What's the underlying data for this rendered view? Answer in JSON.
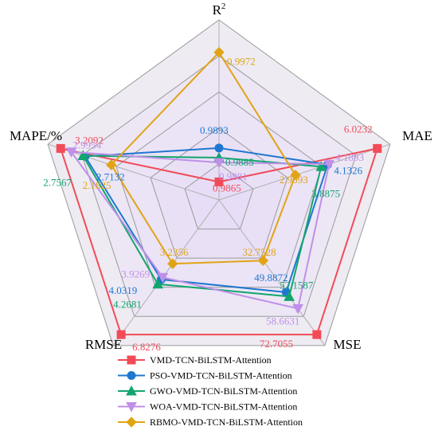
{
  "chart_data": {
    "type": "radar",
    "title": "",
    "axes": [
      "R",
      "MAE",
      "MSE",
      "RMSE",
      "MAPE/%"
    ],
    "axis_superscripts": [
      "2",
      "",
      "",
      "",
      ""
    ],
    "grid": true,
    "legend_placement": "bottom-center",
    "series": [
      {
        "name": "VMD-TCN-BiLSTM-Attention",
        "color": "#F24B57",
        "marker": "square",
        "values": [
          0.9865,
          6.0232,
          72.7055,
          6.8276,
          3.2092
        ],
        "labels": [
          "0.9865",
          "6.0232",
          "72.7055",
          "6.8276",
          "3.2092"
        ]
      },
      {
        "name": "PSO-VMD-TCN-BiLSTM-Attention",
        "color": "#1F77D0",
        "marker": "circle",
        "values": [
          0.9893,
          4.1326,
          49.8872,
          4.0319,
          2.7132
        ],
        "labels": [
          "0.9893",
          "4.1326",
          "49.8872",
          "4.0319",
          "2.7132"
        ]
      },
      {
        "name": "GWO-VMD-TCN-BiLSTM-Attention",
        "color": "#12A56E",
        "marker": "triangle",
        "values": [
          0.9885,
          3.8875,
          52.1587,
          4.2681,
          2.7567
        ],
        "labels": [
          "0.9885",
          "3.8875",
          "52.1587",
          "4.2681",
          "2.7567"
        ]
      },
      {
        "name": "WOA-VMD-TCN-BiLSTM-Attention",
        "color": "#C08FE8",
        "marker": "triangle-down",
        "values": [
          0.9881,
          4.1893,
          58.6631,
          3.9269,
          2.9954
        ],
        "labels": [
          "0.9881",
          "4.1893",
          "58.6631",
          "3.9269",
          "2.9954"
        ]
      },
      {
        "name": "RBMO-VMD-TCN-BiLSTM-Attention",
        "color": "#E0A414",
        "marker": "diamond",
        "values": [
          0.9972,
          2.9093,
          32.7528,
          3.2356,
          2.1825
        ],
        "labels": [
          "0.9972",
          "2.9093",
          "32.7528",
          "3.2356",
          "2.1825"
        ]
      }
    ]
  }
}
